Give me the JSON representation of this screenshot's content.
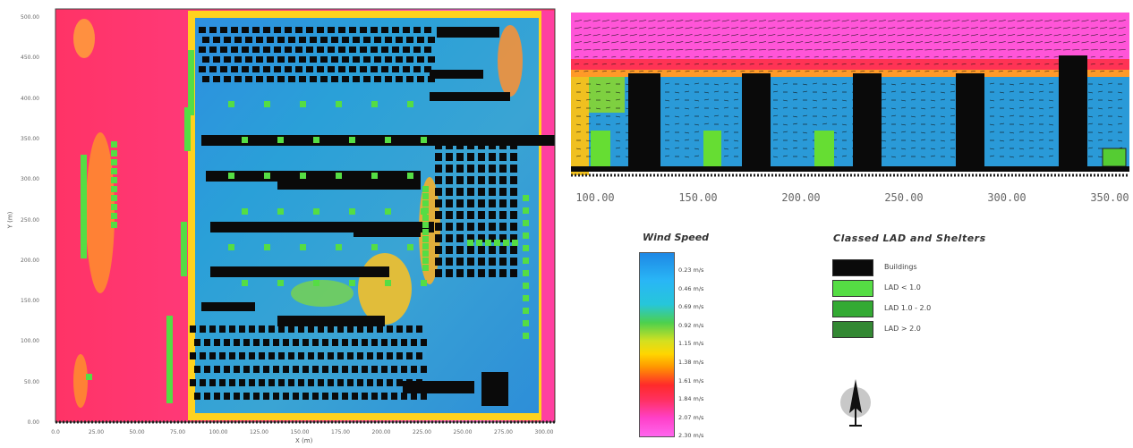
{
  "plan_view": {
    "y_ticks": [
      "500.00",
      "450.00",
      "400.00",
      "350.00",
      "300.00",
      "250.00",
      "200.00",
      "150.00",
      "100.00",
      "50.00",
      "0.00"
    ],
    "x_ticks": [
      "0.0",
      "25.00",
      "50.00",
      "75.00",
      "100.00",
      "125.00",
      "150.00",
      "175.00",
      "200.00",
      "225.00",
      "250.00",
      "275.00",
      "300.00"
    ],
    "y_axis_title": "Y (m)",
    "x_axis_title": "X (m)"
  },
  "section_view": {
    "x_ticks": [
      "100.00",
      "150.00",
      "200.00",
      "250.00",
      "300.00",
      "350.00"
    ]
  },
  "wind_speed_legend": {
    "title": "Wind Speed",
    "labels": [
      "0.23 m/s",
      "0.46 m/s",
      "0.69 m/s",
      "0.92 m/s",
      "1.15 m/s",
      "1.38 m/s",
      "1.61 m/s",
      "1.84 m/s",
      "2.07 m/s",
      "2.30 m/s"
    ]
  },
  "lad_legend": {
    "title": "Classed LAD and Shelters",
    "items": [
      {
        "label": "Buildings",
        "color": "#0a0a0a"
      },
      {
        "label": "LAD < 1.0",
        "color": "#55dd44"
      },
      {
        "label": "LAD 1.0 - 2.0",
        "color": "#33aa33"
      },
      {
        "label": "LAD > 2.0",
        "color": "#338833"
      }
    ]
  },
  "colors": {
    "building": "#0a0a0a",
    "low_speed": "#1e88e5",
    "high_speed": "#ff3366",
    "max_speed": "#ff55ee"
  },
  "icons": [
    "north-arrow-icon"
  ]
}
